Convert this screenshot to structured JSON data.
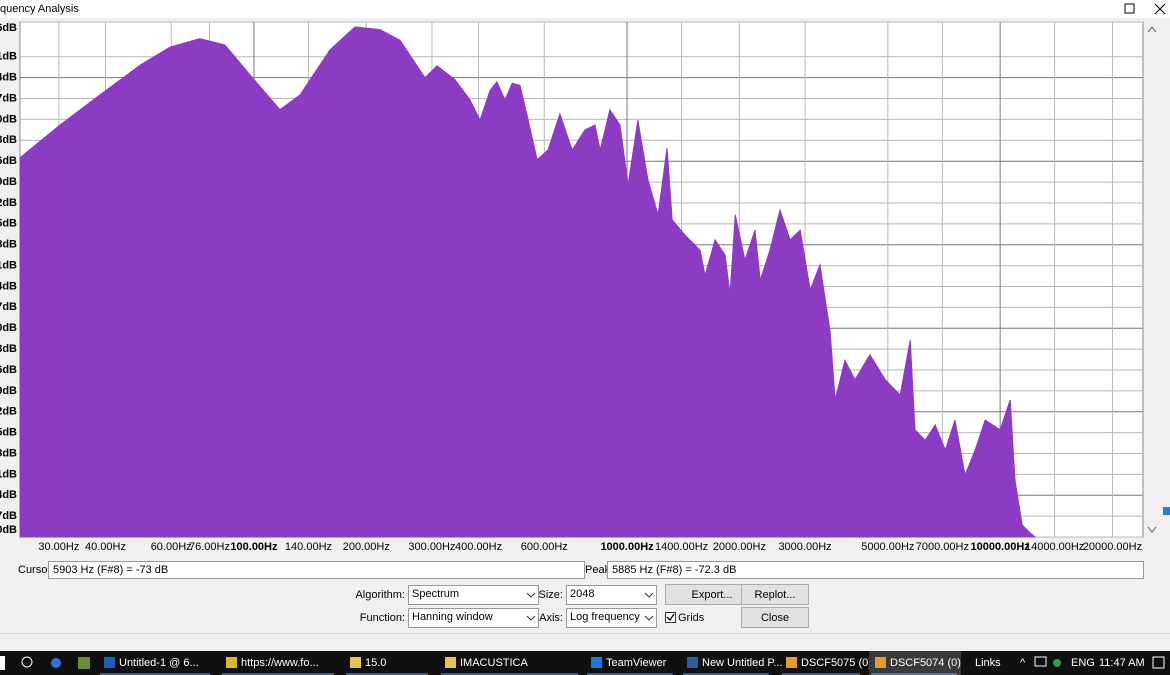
{
  "window": {
    "title": "quency Analysis"
  },
  "chart_data": {
    "type": "area",
    "x": [
      23.6,
      30.2,
      38.6,
      49.5,
      59.6,
      71.6,
      83.6,
      97.6,
      117.4,
      132.8,
      159.9,
      186.6,
      217.7,
      246.2,
      287.3,
      309.5,
      345.9,
      379.3,
      403.6,
      429.5,
      447.7,
      470.9,
      492.0,
      516.4,
      543.3,
      574.1,
      613.8,
      660.7,
      712.9,
      771.5,
      820.4,
      847.2,
      899.5,
      957.3,
      1006.4,
      1069,
      1138,
      1211,
      1280,
      1321,
      1429,
      1570,
      1618,
      1722,
      1832,
      1888,
      1950,
      2070,
      2203,
      2275,
      2415,
      2570,
      2735,
      2911,
      3097,
      3289,
      3499,
      3614,
      3837,
      4083,
      4477,
      4920,
      5395,
      5741,
      5916,
      6295,
      6699,
      7129,
      7568,
      8054,
      8570,
      9120,
      10000,
      10640,
      10960,
      11460,
      12030,
      12410
    ],
    "values": [
      -35.5,
      -30.8,
      -26.5,
      -22.2,
      -19.6,
      -18.4,
      -19.3,
      -23.6,
      -28.6,
      -26.5,
      -20.0,
      -16.7,
      -17.1,
      -18.6,
      -24.0,
      -22.3,
      -24.3,
      -27.2,
      -30.1,
      -25.8,
      -24.6,
      -27.2,
      -24.8,
      -25.1,
      -30.1,
      -35.8,
      -34.4,
      -29.2,
      -34.4,
      -31.5,
      -30.8,
      -34.4,
      -28.6,
      -30.8,
      -39.4,
      -30.1,
      -38.7,
      -43.7,
      -34.1,
      -44.4,
      -46.6,
      -48.8,
      -52.4,
      -47.3,
      -49.5,
      -55.2,
      -43.7,
      -50.2,
      -45.9,
      -53.1,
      -48.8,
      -43.0,
      -47.3,
      -45.9,
      -54.5,
      -50.9,
      -60.3,
      -70.3,
      -64.6,
      -67.4,
      -63.8,
      -67.4,
      -69.6,
      -61.7,
      -74.6,
      -76.1,
      -73.9,
      -77.5,
      -73.2,
      -81.1,
      -77.5,
      -73.2,
      -74.6,
      -70.3,
      -81.8,
      -88.3,
      -89.4,
      -90.0
    ],
    "color": "#8b3cc3",
    "log_x": true,
    "grid": true,
    "xlim": [
      23.6,
      24150
    ],
    "ylim": [
      -90,
      -16
    ],
    "xticks": [
      {
        "value": 30,
        "label": "30.00Hz"
      },
      {
        "value": 40,
        "label": "40.00Hz"
      },
      {
        "value": 60,
        "label": "60.00Hz"
      },
      {
        "value": 76,
        "label": "76.00Hz"
      },
      {
        "value": 100,
        "label": "100.00Hz"
      },
      {
        "value": 140,
        "label": "140.00Hz"
      },
      {
        "value": 200,
        "label": "200.00Hz"
      },
      {
        "value": 300,
        "label": "300.00Hz"
      },
      {
        "value": 400,
        "label": "400.00Hz"
      },
      {
        "value": 600,
        "label": "600.00Hz"
      },
      {
        "value": 1000,
        "label": "1000.00Hz"
      },
      {
        "value": 1400,
        "label": "1400.00Hz"
      },
      {
        "value": 2000,
        "label": "2000.00Hz"
      },
      {
        "value": 3000,
        "label": "3000.00Hz"
      },
      {
        "value": 5000,
        "label": "5000.00Hz"
      },
      {
        "value": 7000,
        "label": "7000.00Hz"
      },
      {
        "value": 10000,
        "label": "10000.00Hz"
      },
      {
        "value": 14000,
        "label": "14000.00Hz"
      },
      {
        "value": 20000,
        "label": "20000.00Hz"
      }
    ],
    "yticks": [
      {
        "value": -16,
        "label": "6dB"
      },
      {
        "value": -21,
        "label": "1dB"
      },
      {
        "value": -24,
        "label": "4dB"
      },
      {
        "value": -27,
        "label": "7dB"
      },
      {
        "value": -30,
        "label": "0dB"
      },
      {
        "value": -33,
        "label": "3dB"
      },
      {
        "value": -36,
        "label": "6dB"
      },
      {
        "value": -39,
        "label": "9dB"
      },
      {
        "value": -42,
        "label": "2dB"
      },
      {
        "value": -45,
        "label": "5dB"
      },
      {
        "value": -48,
        "label": "8dB"
      },
      {
        "value": -51,
        "label": "1dB"
      },
      {
        "value": -54,
        "label": "4dB"
      },
      {
        "value": -57,
        "label": "7dB"
      },
      {
        "value": -60,
        "label": "0dB"
      },
      {
        "value": -63,
        "label": "3dB"
      },
      {
        "value": -66,
        "label": "6dB"
      },
      {
        "value": -69,
        "label": "9dB"
      },
      {
        "value": -72,
        "label": "2dB"
      },
      {
        "value": -75,
        "label": "5dB"
      },
      {
        "value": -78,
        "label": "8dB"
      },
      {
        "value": -81,
        "label": "1dB"
      },
      {
        "value": -84,
        "label": "4dB"
      },
      {
        "value": -87,
        "label": "7dB"
      },
      {
        "value": -90,
        "label": "0dB"
      }
    ]
  },
  "status": {
    "cursor_label": "Cursor:",
    "cursor_value": "5903 Hz (F#8) = -73 dB",
    "peak_label": "Peak:",
    "peak_value": "5885 Hz (F#8) = -72.3 dB"
  },
  "controls": {
    "algorithm_label": "Algorithm:",
    "algorithm": "Spectrum",
    "size_label": "Size:",
    "size": "2048",
    "export": "Export...",
    "replot": "Replot...",
    "function_label": "Function:",
    "function": "Hanning window",
    "axis_label": "Axis:",
    "axis": "Log frequency",
    "grids": "Grids",
    "close": "Close"
  },
  "taskbar": {
    "items": [
      "Untitled-1 @ 6...",
      "https://www.fo...",
      "15.0",
      "IMACUSTICA",
      "TeamViewer",
      "New Untitled P...",
      "DSCF5075 (0)",
      "DSCF5074 (0)"
    ],
    "links": "Links",
    "lang": "ENG",
    "time": "11:47 AM"
  }
}
